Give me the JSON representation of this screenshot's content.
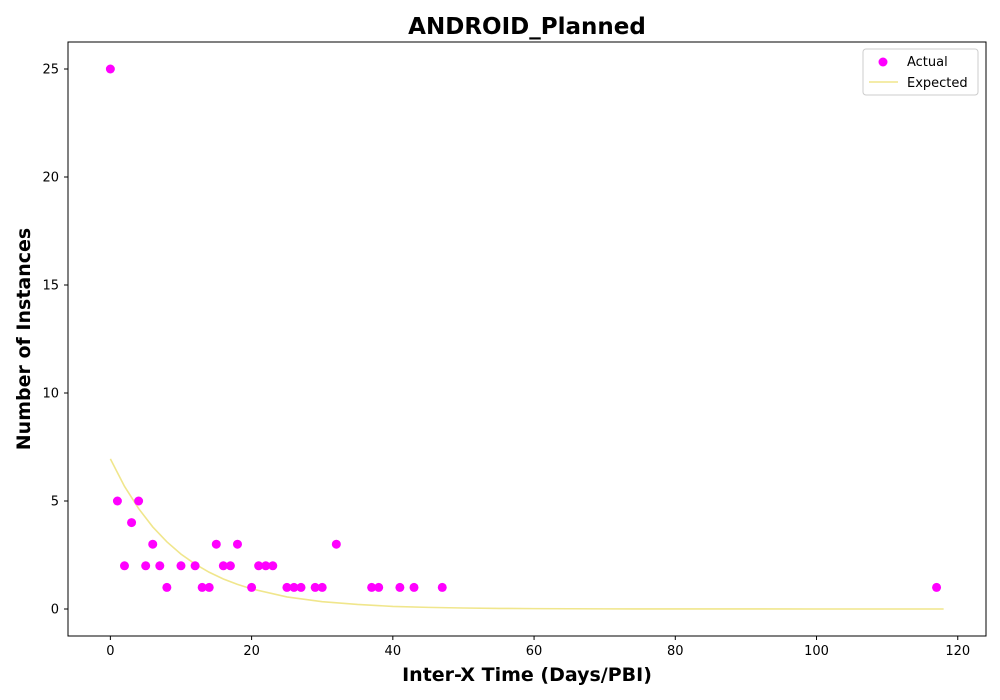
{
  "chart_data": {
    "type": "scatter",
    "title": "ANDROID_Planned",
    "xlabel": "Inter-X Time (Days/PBI)",
    "ylabel": "Number of Instances",
    "xlim": [
      -6,
      124
    ],
    "ylim": [
      -1.25,
      26.25
    ],
    "xticks": [
      0,
      20,
      40,
      60,
      80,
      100,
      120
    ],
    "yticks": [
      0,
      5,
      10,
      15,
      20,
      25
    ],
    "grid": false,
    "legend_position": "top-right",
    "series": [
      {
        "name": "Actual",
        "kind": "scatter",
        "color": "#ff00ff",
        "points": [
          [
            0,
            25
          ],
          [
            1,
            5
          ],
          [
            2,
            2
          ],
          [
            3,
            4
          ],
          [
            4,
            5
          ],
          [
            5,
            2
          ],
          [
            6,
            3
          ],
          [
            7,
            2
          ],
          [
            8,
            1
          ],
          [
            10,
            2
          ],
          [
            12,
            2
          ],
          [
            13,
            1
          ],
          [
            14,
            1
          ],
          [
            15,
            3
          ],
          [
            16,
            2
          ],
          [
            17,
            2
          ],
          [
            18,
            3
          ],
          [
            20,
            1
          ],
          [
            21,
            2
          ],
          [
            22,
            2
          ],
          [
            23,
            2
          ],
          [
            25,
            1
          ],
          [
            26,
            1
          ],
          [
            27,
            1
          ],
          [
            29,
            1
          ],
          [
            30,
            1
          ],
          [
            32,
            3
          ],
          [
            37,
            1
          ],
          [
            38,
            1
          ],
          [
            41,
            1
          ],
          [
            43,
            1
          ],
          [
            47,
            1
          ],
          [
            117,
            1
          ]
        ]
      },
      {
        "name": "Expected",
        "kind": "line",
        "color": "#f0e68c",
        "x": [
          0,
          2,
          4,
          6,
          8,
          10,
          12,
          14,
          16,
          18,
          20,
          25,
          30,
          35,
          40,
          45,
          50,
          55,
          60,
          70,
          80,
          90,
          100,
          110,
          118
        ],
        "y": [
          6.95,
          5.68,
          4.65,
          3.8,
          3.11,
          2.54,
          2.08,
          1.7,
          1.39,
          1.14,
          0.93,
          0.56,
          0.34,
          0.21,
          0.12,
          0.075,
          0.046,
          0.028,
          0.017,
          0.006,
          0.002,
          0.001,
          0.0004,
          0.0001,
          0.0001
        ]
      }
    ]
  }
}
